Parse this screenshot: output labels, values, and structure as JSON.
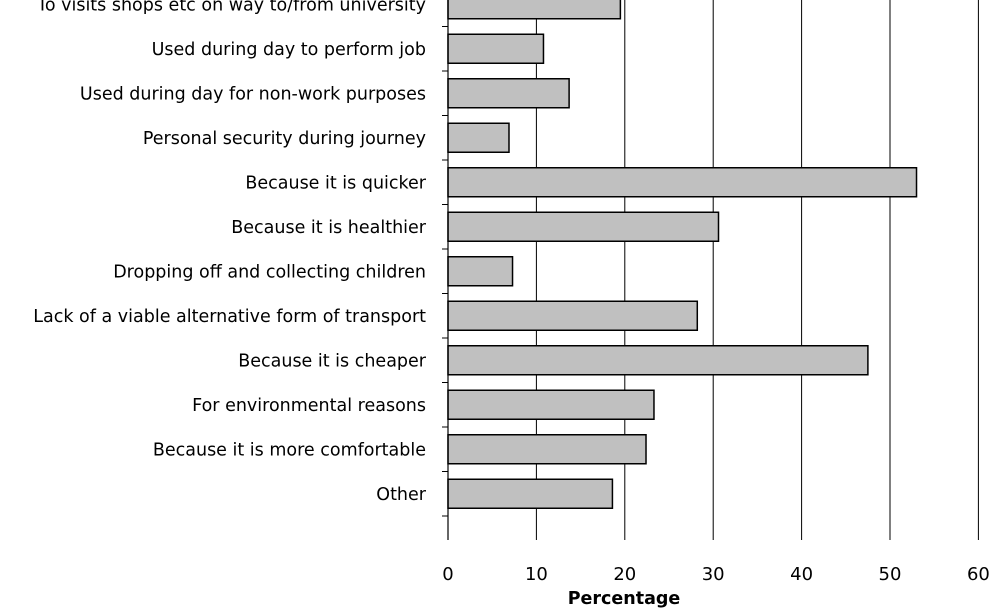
{
  "chart_data": {
    "type": "bar",
    "orientation": "horizontal",
    "categories": [
      "To visits shops etc on way to/from university",
      "Used during day to perform job",
      "Used during day for non-work purposes",
      "Personal security during journey",
      "Because it is quicker",
      "Because it is healthier",
      "Dropping off and collecting children",
      "Lack of a viable alternative form of transport",
      "Because it is cheaper",
      "For environmental reasons",
      "Because it is more comfortable",
      "Other"
    ],
    "values": [
      19.5,
      10.8,
      13.7,
      6.9,
      53.0,
      30.6,
      7.3,
      28.2,
      47.5,
      23.3,
      22.4,
      18.6
    ],
    "xlabel": "Percentage",
    "ylabel": "",
    "xlim": [
      0,
      60
    ],
    "xticks": [
      0,
      10,
      20,
      30,
      40,
      50,
      60
    ],
    "grid": "vertical",
    "bar_color": "#c0c0c0",
    "bar_edge_color": "#000000"
  }
}
